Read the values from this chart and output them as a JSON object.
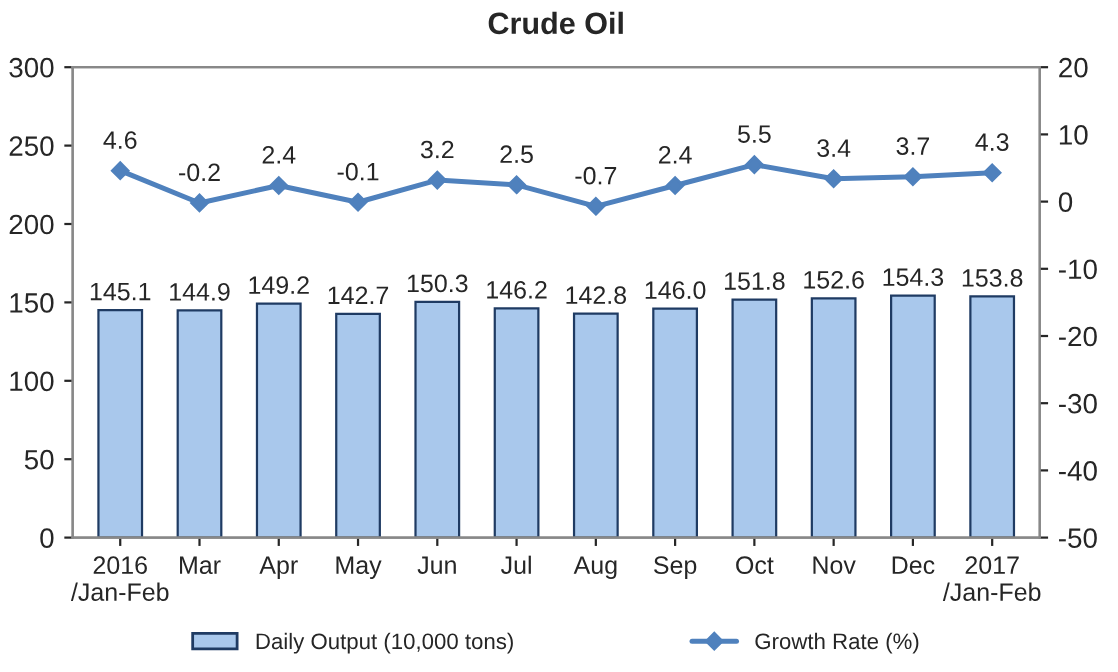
{
  "chart_data": {
    "type": "bar",
    "title": "Crude Oil",
    "categories": [
      "2016\n/Jan-Feb",
      "Mar",
      "Apr",
      "May",
      "Jun",
      "Jul",
      "Aug",
      "Sep",
      "Oct",
      "Nov",
      "Dec",
      "2017\n/Jan-Feb"
    ],
    "series": [
      {
        "name": "Daily Output (10,000 tons)",
        "color": "#a9c8ec",
        "values": [
          145.1,
          144.9,
          149.2,
          142.7,
          150.3,
          146.2,
          142.8,
          146.0,
          151.8,
          152.6,
          154.3,
          153.8
        ],
        "value_labels": [
          "145.1",
          "144.9",
          "149.2",
          "142.7",
          "150.3",
          "146.2",
          "142.8",
          "146.0",
          "151.8",
          "152.6",
          "154.3",
          "153.8"
        ]
      },
      {
        "name": "Growth Rate (%)",
        "type": "line",
        "axis": "y2",
        "color": "#4f81bd",
        "marker": "diamond",
        "values": [
          4.6,
          -0.2,
          2.4,
          -0.1,
          3.2,
          2.5,
          -0.7,
          2.4,
          5.5,
          3.4,
          3.7,
          4.3
        ]
      }
    ],
    "ylim": [
      0,
      300
    ],
    "yticks": [
      0,
      50,
      100,
      150,
      200,
      250,
      300
    ],
    "y2lim": [
      -50,
      20
    ],
    "y2ticks": [
      -50,
      -40,
      -30,
      -20,
      -10,
      0,
      10,
      20
    ],
    "data_labels": true,
    "legend": "bottom",
    "grid": false
  }
}
